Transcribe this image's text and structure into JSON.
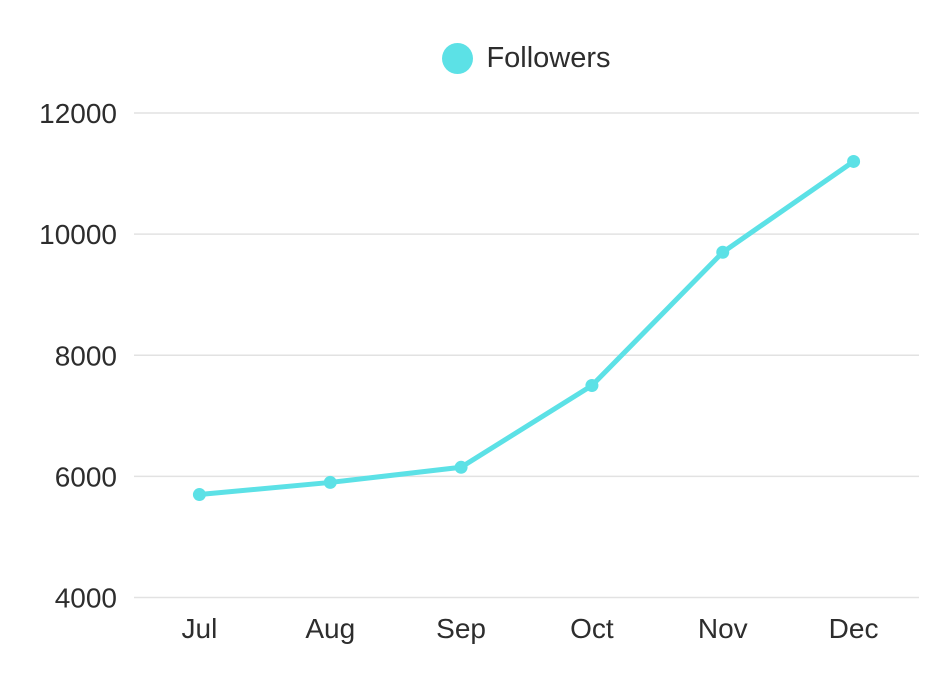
{
  "chart_data": {
    "type": "line",
    "title": "",
    "categories": [
      "Jul",
      "Aug",
      "Sep",
      "Oct",
      "Nov",
      "Dec"
    ],
    "series": [
      {
        "name": "Followers",
        "values": [
          5700,
          5900,
          6150,
          7500,
          9700,
          11200
        ],
        "color": "#5CE1E6"
      }
    ],
    "xlabel": "",
    "ylabel": "",
    "ylim": [
      4000,
      12000
    ],
    "yticks": [
      4000,
      6000,
      8000,
      10000,
      12000
    ],
    "grid": "horizontal-only",
    "legend_position": "top-center",
    "colors": {
      "line": "#5CE1E6",
      "marker": "#5CE1E6",
      "gridline": "#e2e2e2",
      "text": "#2d2d2d",
      "background": "#ffffff"
    }
  }
}
